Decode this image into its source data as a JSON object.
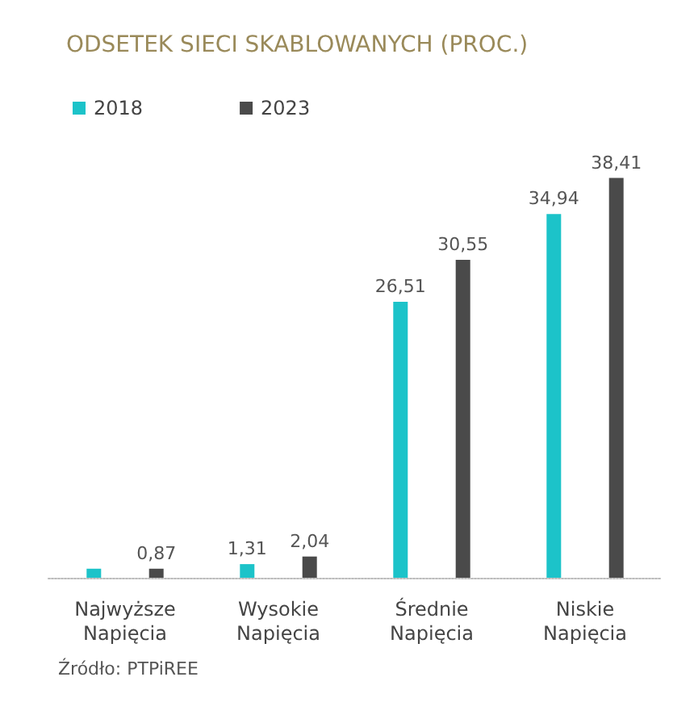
{
  "chart_data": {
    "type": "bar",
    "title": "ODSETEK SIECI SKABLOWANYCH (PROC.)",
    "categories": [
      "Najwyższe\nNapięcia",
      "Wysokie\nNapięcia",
      "Średnie\nNapięcia",
      "Niskie\nNapięcia"
    ],
    "series": [
      {
        "name": "2018",
        "color": "#1cc3c9",
        "values": [
          0.87,
          1.31,
          26.51,
          34.94
        ],
        "value_labels": [
          null,
          "1,31",
          "26,51",
          "34,94"
        ]
      },
      {
        "name": "2023",
        "color": "#4a4a4a",
        "values": [
          0.87,
          2.04,
          30.55,
          38.41
        ],
        "value_labels": [
          "0,87",
          "2,04",
          "30,55",
          "38,41"
        ]
      }
    ],
    "legend": "top left",
    "grid": false,
    "annotations": [
      "Źródło: PTPiREE"
    ]
  }
}
